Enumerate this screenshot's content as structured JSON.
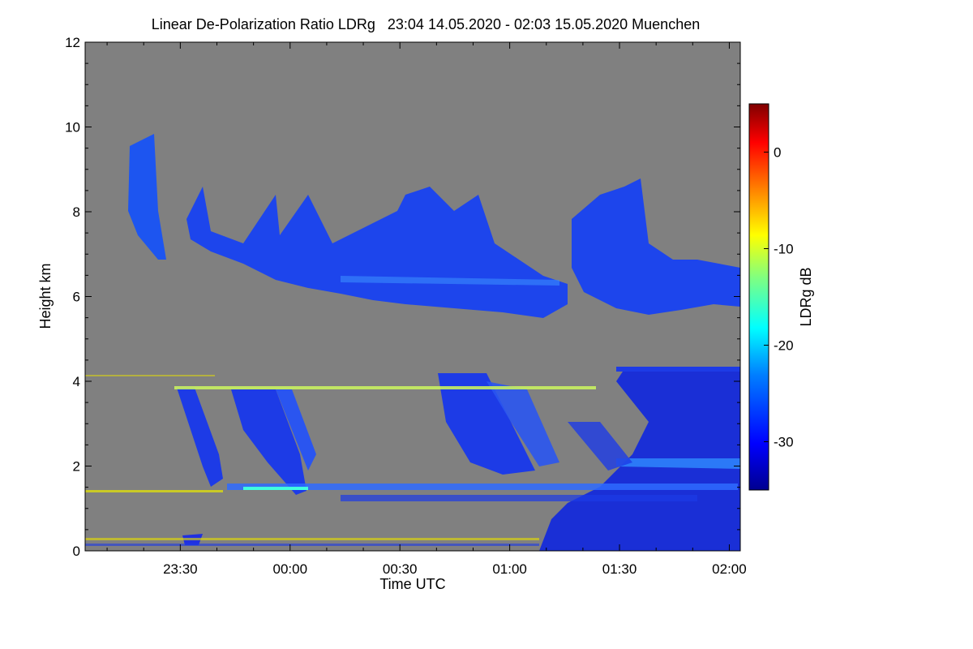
{
  "chart_data": {
    "type": "heatmap",
    "title": "Linear De-Polarization Ratio LDRg   23:04 14.05.2020 - 02:03 15.05.2020 Muenchen",
    "xlabel": "Time UTC",
    "ylabel": "Height km",
    "colorbar_label": "LDRg dB",
    "xlim": [
      "23:04",
      "02:03"
    ],
    "x_ticks": [
      "23:30",
      "00:00",
      "00:30",
      "01:00",
      "01:30",
      "02:00"
    ],
    "ylim": [
      0,
      12
    ],
    "y_ticks": [
      "0",
      "2",
      "4",
      "6",
      "8",
      "10",
      "12"
    ],
    "colorbar_range": [
      -35,
      5
    ],
    "colorbar_ticks": [
      "0",
      "-10",
      "-20",
      "-30"
    ],
    "background_color": "#808080",
    "colormap": [
      "#00008f",
      "#0000ff",
      "#0080ff",
      "#00ffff",
      "#80ff80",
      "#ffff00",
      "#ff8000",
      "#ff0000",
      "#800000"
    ]
  }
}
